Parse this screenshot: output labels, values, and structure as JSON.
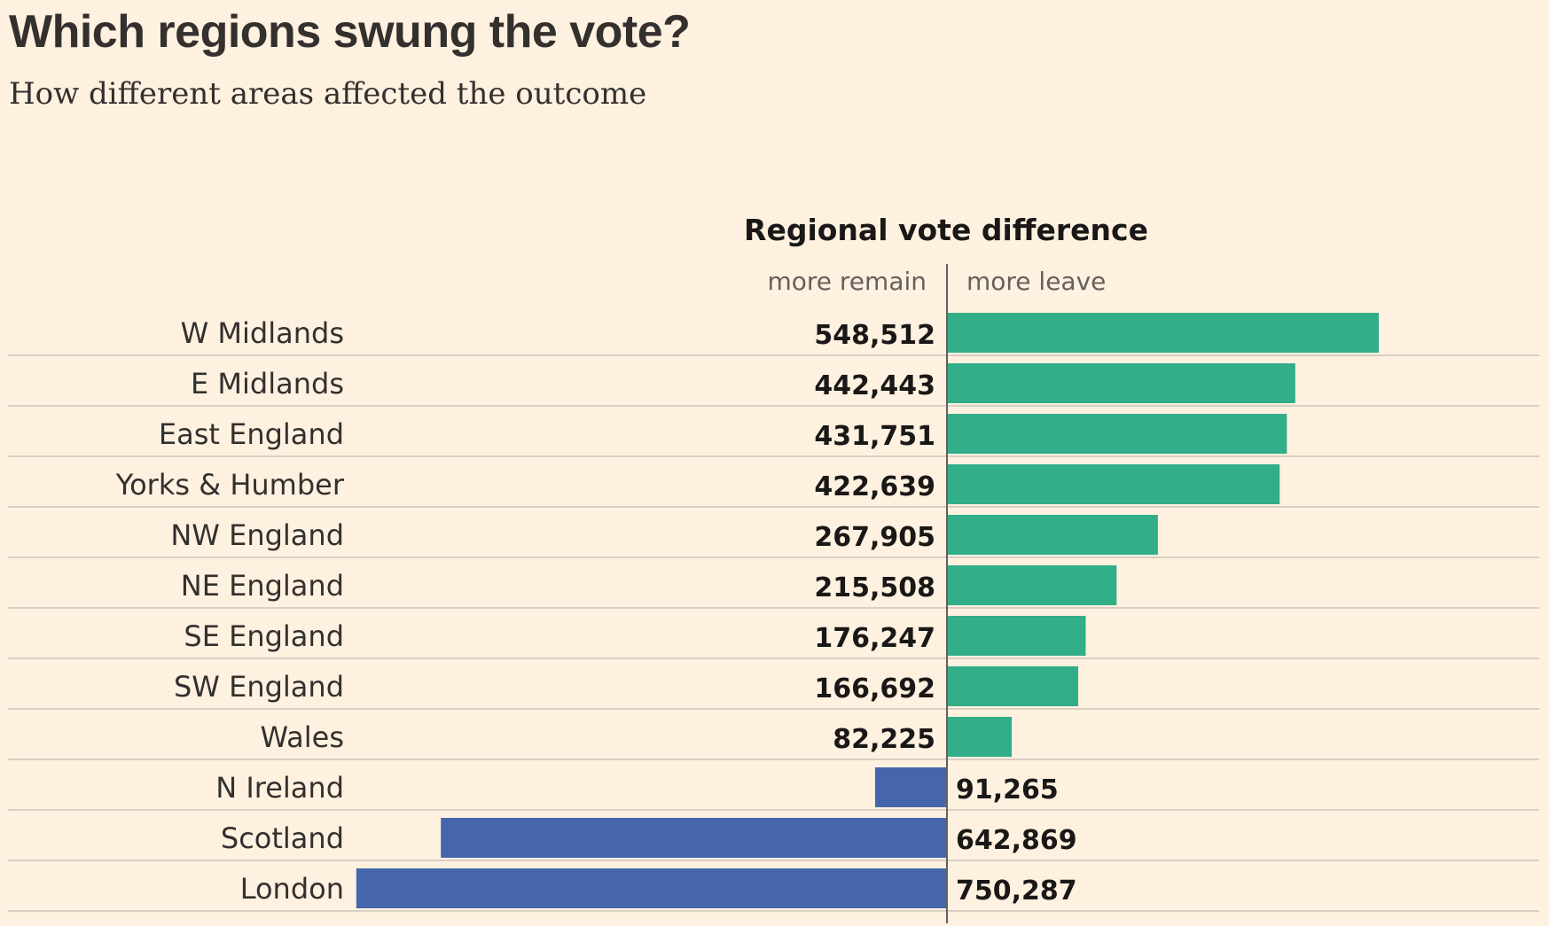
{
  "header": {
    "title": "Which regions swung the vote?",
    "subtitle": "How different areas affected the outcome"
  },
  "colors": {
    "leave": "#32ae88",
    "remain": "#4565ad",
    "background": "#fff1e0",
    "grid": "#d9cfc3",
    "text": "#33302e"
  },
  "chart_data": {
    "type": "bar",
    "orientation": "horizontal-diverging",
    "title": "Regional vote difference",
    "negative_label": "more remain",
    "positive_label": "more leave",
    "categories": [
      "W Midlands",
      "E Midlands",
      "East England",
      "Yorks & Humber",
      "NW England",
      "NE England",
      "SE England",
      "SW England",
      "Wales",
      "N Ireland",
      "Scotland",
      "London"
    ],
    "values": [
      548512,
      442443,
      431751,
      422639,
      267905,
      215508,
      176247,
      166692,
      82225,
      -91265,
      -642869,
      -750287
    ],
    "value_labels": [
      "548,512",
      "442,443",
      "431,751",
      "422,639",
      "267,905",
      "215,508",
      "176,247",
      "166,692",
      "82,225",
      "91,265",
      "642,869",
      "750,287"
    ],
    "grid": false
  }
}
